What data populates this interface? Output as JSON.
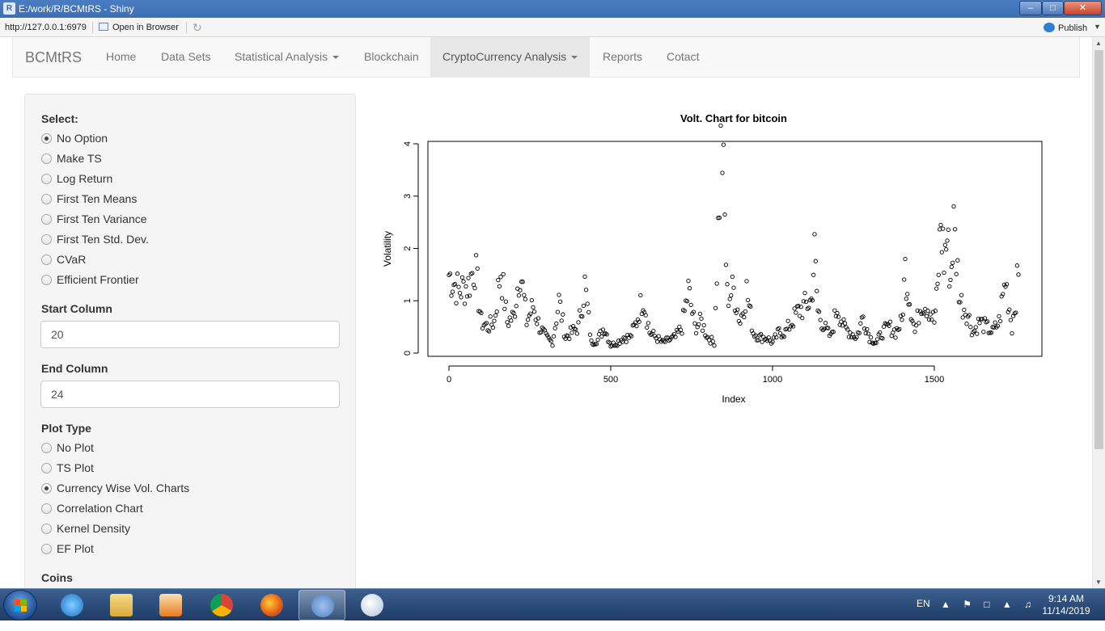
{
  "window": {
    "app_icon": "R",
    "title": "E:/work/R/BCMtRS - Shiny",
    "controls": {
      "minimize": "–",
      "maximize": "□",
      "close": "✕"
    }
  },
  "toolbar": {
    "url": "http://127.0.0.1:6979",
    "open_in_browser": "Open in Browser",
    "refresh_icon": "refresh-icon",
    "publish": "Publish"
  },
  "navbar": {
    "brand": "BCMtRS",
    "items": [
      {
        "label": "Home",
        "dropdown": false,
        "active": false
      },
      {
        "label": "Data Sets",
        "dropdown": false,
        "active": false
      },
      {
        "label": "Statistical Analysis",
        "dropdown": true,
        "active": false
      },
      {
        "label": "Blockchain",
        "dropdown": false,
        "active": false
      },
      {
        "label": "CryptoCurrency Analysis",
        "dropdown": true,
        "active": true
      },
      {
        "label": "Reports",
        "dropdown": false,
        "active": false
      },
      {
        "label": "Cotact",
        "dropdown": false,
        "active": false
      }
    ]
  },
  "sidebar": {
    "select": {
      "label": "Select:",
      "options": [
        "No Option",
        "Make TS",
        "Log Return",
        "First Ten Means",
        "First Ten Variance",
        "First Ten Std. Dev.",
        "CVaR",
        "Efficient Frontier"
      ],
      "selected": "No Option"
    },
    "start_column": {
      "label": "Start Column",
      "value": "20"
    },
    "end_column": {
      "label": "End Column",
      "value": "24"
    },
    "plot_type": {
      "label": "Plot Type",
      "options": [
        "No Plot",
        "TS Plot",
        "Currency Wise Vol. Charts",
        "Correlation Chart",
        "Kernel Density",
        "EF Plot"
      ],
      "selected": "Currency Wise Vol. Charts"
    },
    "coins": {
      "label": "Coins"
    }
  },
  "chart_data": {
    "type": "scatter",
    "title": "Volt. Chart for  bitcoin",
    "xlabel": "Index",
    "ylabel": "Volatility",
    "xlim": [
      0,
      1830
    ],
    "ylim": [
      0,
      4
    ],
    "xticks": [
      0,
      500,
      1000,
      1500
    ],
    "yticks": [
      0,
      1,
      2,
      3,
      4
    ],
    "grid": false,
    "legend": "none",
    "series": [
      {
        "points_are_approximate_trend": true,
        "x": [
          0,
          30,
          60,
          80,
          100,
          120,
          140,
          160,
          180,
          200,
          220,
          240,
          260,
          280,
          300,
          320,
          340,
          360,
          380,
          400,
          420,
          440,
          460,
          480,
          500,
          520,
          540,
          560,
          580,
          600,
          620,
          640,
          660,
          680,
          700,
          720,
          740,
          760,
          780,
          800,
          820,
          840,
          845,
          860,
          880,
          900,
          920,
          940,
          960,
          980,
          1000,
          1020,
          1040,
          1060,
          1080,
          1100,
          1120,
          1130,
          1140,
          1160,
          1180,
          1200,
          1220,
          1240,
          1260,
          1280,
          1300,
          1320,
          1340,
          1360,
          1380,
          1400,
          1410,
          1420,
          1440,
          1460,
          1480,
          1500,
          1510,
          1520,
          1530,
          1540,
          1550,
          1560,
          1580,
          1600,
          1620,
          1640,
          1660,
          1680,
          1700,
          1720,
          1740,
          1760
        ],
        "y": [
          1.5,
          1.2,
          1.3,
          1.7,
          0.6,
          0.5,
          0.6,
          1.6,
          0.6,
          0.7,
          1.65,
          0.6,
          0.9,
          0.5,
          0.3,
          0.2,
          1.0,
          0.3,
          0.4,
          0.5,
          1.3,
          0.2,
          0.25,
          0.5,
          0.15,
          0.2,
          0.3,
          0.3,
          0.6,
          1.1,
          0.4,
          0.3,
          0.2,
          0.25,
          0.3,
          0.5,
          1.2,
          0.5,
          0.6,
          0.3,
          0.2,
          3.8,
          3.9,
          1.1,
          1.2,
          0.6,
          1.2,
          0.4,
          0.3,
          0.3,
          0.2,
          0.4,
          0.4,
          0.6,
          0.8,
          0.9,
          1.0,
          1.9,
          0.8,
          0.5,
          0.3,
          0.9,
          0.5,
          0.4,
          0.3,
          0.7,
          0.3,
          0.2,
          0.4,
          0.5,
          0.4,
          0.6,
          1.6,
          1.2,
          0.4,
          1.0,
          0.9,
          0.6,
          1.2,
          2.5,
          1.8,
          2.2,
          1.4,
          2.4,
          1.0,
          0.8,
          0.4,
          0.6,
          0.5,
          0.4,
          0.6,
          1.4,
          0.5,
          1.5
        ]
      }
    ]
  },
  "taskbar": {
    "items": [
      "start-button",
      "ie-icon",
      "file-explorer-icon",
      "media-player-icon",
      "chrome-icon",
      "firefox-icon",
      "r-icon",
      "paint-icon"
    ],
    "active": "r-icon",
    "language": "EN",
    "clock_time": "9:14 AM",
    "clock_date": "11/14/2019"
  }
}
